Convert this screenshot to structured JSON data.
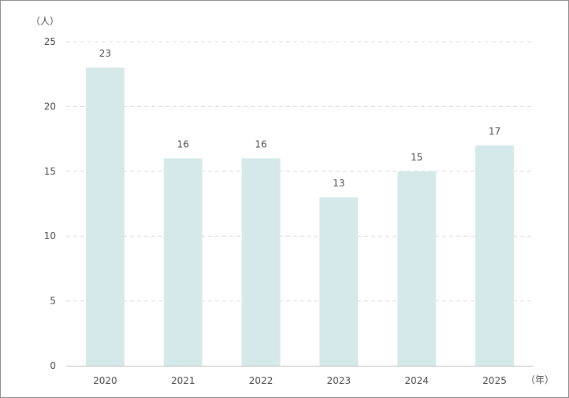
{
  "chart_data": {
    "type": "bar",
    "categories": [
      "2020",
      "2021",
      "2022",
      "2023",
      "2024",
      "2025"
    ],
    "values": [
      23,
      16,
      16,
      13,
      15,
      17
    ],
    "title": "",
    "xlabel": "（年）",
    "ylabel": "（人）",
    "ylim": [
      0,
      25
    ],
    "yticks": [
      0,
      5,
      10,
      15,
      20,
      25
    ],
    "grid": true,
    "legend": "none",
    "data_labels": [
      "23",
      "16",
      "16",
      "13",
      "15",
      "17"
    ],
    "colors": {
      "bar": "#d5e9eb",
      "grid": "#d9d9d9",
      "axis": "#bfbfbf",
      "text": "#4a4a4a"
    }
  }
}
